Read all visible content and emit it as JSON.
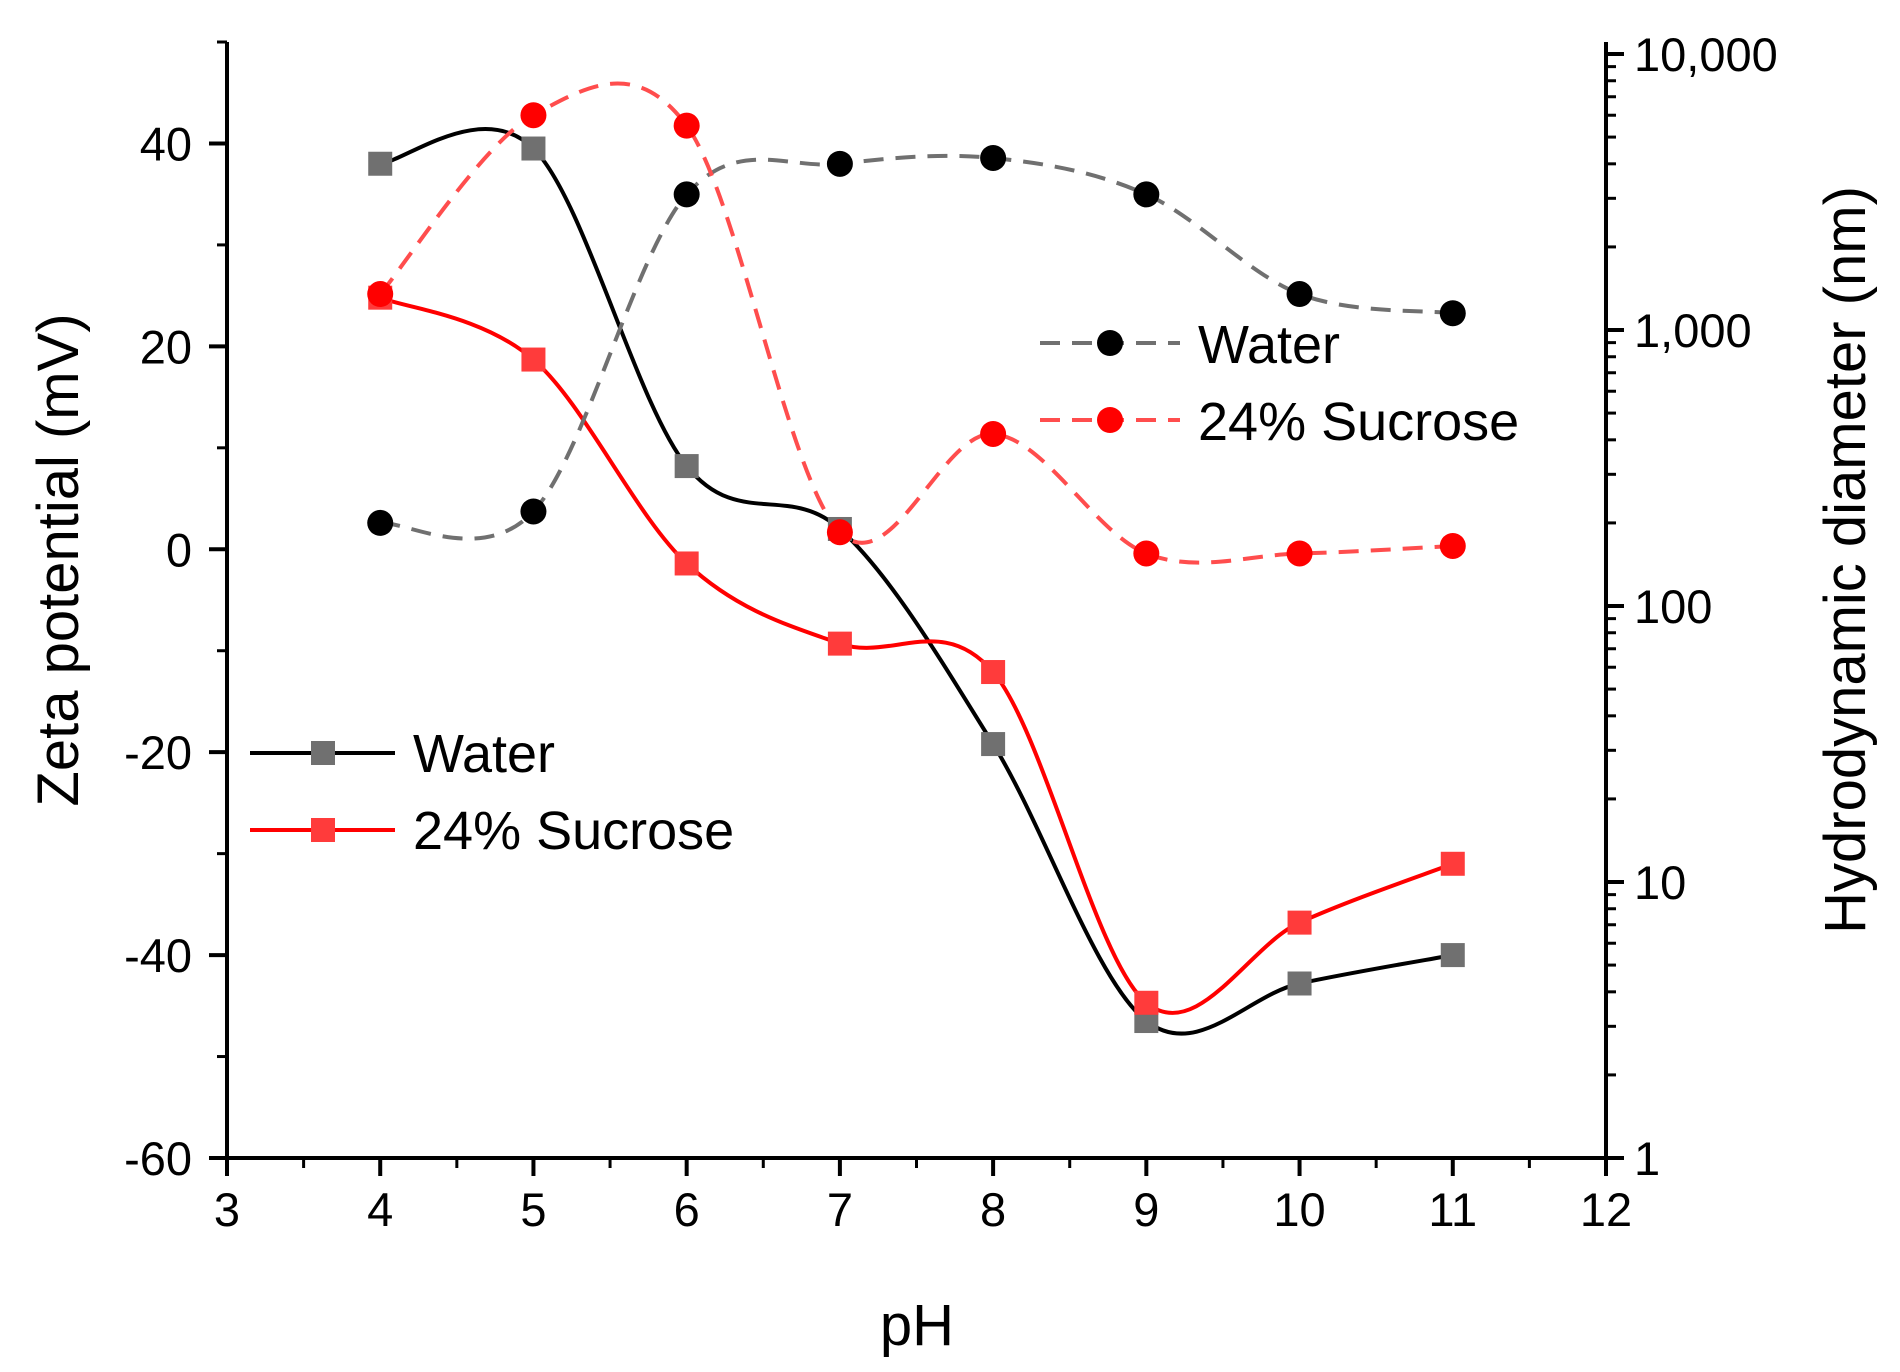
{
  "chart_data": {
    "type": "scatter",
    "title": "",
    "xlabel": "pH",
    "ylabel_left": "Zeta potential (mV)",
    "ylabel_right": "Hydrodynamic diameter (nm)",
    "xlim": [
      3,
      12
    ],
    "ylim_left": [
      -60,
      50
    ],
    "ylim_right": [
      1,
      10000
    ],
    "right_axis_scale": "log",
    "grid": false,
    "x_ticks": [
      "3",
      "4",
      "5",
      "6",
      "7",
      "8",
      "9",
      "10",
      "11",
      "12"
    ],
    "left_ticks": [
      "-60",
      "-40",
      "-20",
      "0",
      "20",
      "40"
    ],
    "right_ticks": [
      "1",
      "10",
      "100",
      "1,000",
      "10,000"
    ],
    "x": [
      4,
      5,
      6,
      7,
      8,
      9,
      10,
      11
    ],
    "zeta_series": [
      {
        "name": "Water",
        "axis": "left",
        "marker": "square",
        "line": "solid",
        "line_color": "#000000",
        "marker_color": "#707070",
        "values": [
          38,
          39.5,
          8.2,
          2.0,
          -19.2,
          -46.5,
          -42.8,
          -40.0
        ]
      },
      {
        "name": "24% Sucrose",
        "axis": "left",
        "marker": "square",
        "line": "solid",
        "line_color": "#ff0000",
        "marker_color": "#ff3b3b",
        "values": [
          24.8,
          18.7,
          -1.4,
          -9.3,
          -12.1,
          -44.7,
          -36.8,
          -31.0
        ]
      }
    ],
    "diameter_series": [
      {
        "name": "Water",
        "axis": "right",
        "marker": "circle",
        "line": "dashed",
        "line_color": "#707070",
        "marker_color": "#000000",
        "values": [
          200,
          220,
          3100,
          4000,
          4200,
          3100,
          1350,
          1150
        ]
      },
      {
        "name": "24% Sucrose",
        "axis": "right",
        "marker": "circle",
        "line": "dashed",
        "line_color": "#ff4d4d",
        "marker_color": "#ff0000",
        "values": [
          1350,
          6000,
          5500,
          185,
          420,
          155,
          155,
          165
        ]
      }
    ],
    "legends": [
      {
        "placement": "middle-left",
        "entries": [
          "Water",
          "24% Sucrose"
        ]
      },
      {
        "placement": "upper-right",
        "entries": [
          "Water",
          "24% Sucrose"
        ]
      }
    ]
  }
}
